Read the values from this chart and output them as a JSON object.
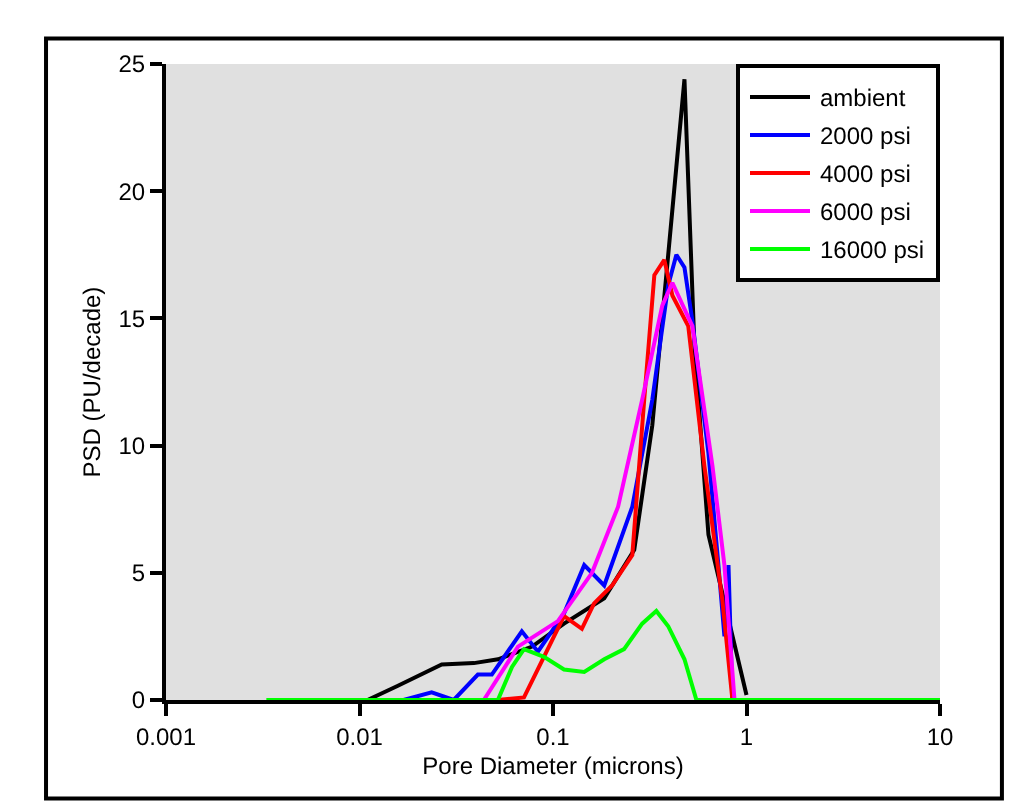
{
  "chart_data": {
    "type": "line",
    "xlabel": "Pore Diameter (microns)",
    "ylabel": "PSD (PU/decade)",
    "log": "x",
    "xlim": [
      0.001,
      10
    ],
    "xticks": [
      {
        "value": 0.001,
        "label": "0.001"
      },
      {
        "value": 0.01,
        "label": "0.01"
      },
      {
        "value": 0.1,
        "label": "0.1"
      },
      {
        "value": 1,
        "label": "1"
      },
      {
        "value": 10,
        "label": "10"
      }
    ],
    "ylim": [
      0,
      25
    ],
    "yticks": [
      0,
      5,
      10,
      15,
      20,
      25
    ],
    "grid": false,
    "legend": "top right",
    "marker": "none",
    "line_style": "solid",
    "series": [
      {
        "name": "ambient",
        "color": "#000000",
        "x": [
          0.011,
          0.0157,
          0.0266,
          0.039,
          0.052,
          0.078,
          0.114,
          0.184,
          0.263,
          0.326,
          0.394,
          0.478,
          0.538,
          0.636,
          1.0
        ],
        "values": [
          0,
          0.55,
          1.4,
          1.45,
          1.6,
          2.1,
          3.0,
          4.0,
          5.9,
          10.8,
          17.5,
          24.4,
          13.9,
          6.5,
          0.2
        ]
      },
      {
        "name": "2000 psi",
        "color": "#0000ff",
        "x": [
          0.0169,
          0.0236,
          0.0307,
          0.0409,
          0.0483,
          0.069,
          0.0836,
          0.114,
          0.145,
          0.184,
          0.257,
          0.326,
          0.394,
          0.434,
          0.478,
          0.525,
          0.636,
          0.716,
          0.769,
          0.807,
          0.846
        ],
        "values": [
          0,
          0.3,
          0,
          1.0,
          1.0,
          2.7,
          1.9,
          3.4,
          5.3,
          4.5,
          7.6,
          11.8,
          16.3,
          17.5,
          17.0,
          14.9,
          9.7,
          5.3,
          2.5,
          5.3,
          0
        ]
      },
      {
        "name": "4000 psi",
        "color": "#ff0000",
        "x": [
          0.0519,
          0.0708,
          0.114,
          0.141,
          0.163,
          0.202,
          0.257,
          0.296,
          0.334,
          0.376,
          0.414,
          0.5,
          0.606,
          0.751,
          0.846
        ],
        "values": [
          0,
          0.1,
          3.3,
          2.8,
          3.8,
          4.5,
          5.7,
          11.8,
          16.7,
          17.3,
          15.9,
          14.7,
          9.2,
          3.9,
          0
        ]
      },
      {
        "name": "6000 psi",
        "color": "#ff00ff",
        "x": [
          0.0439,
          0.0659,
          0.106,
          0.159,
          0.217,
          0.289,
          0.367,
          0.414,
          0.525,
          0.667,
          0.769,
          0.867
        ],
        "values": [
          0,
          2.1,
          3.1,
          5.0,
          7.6,
          11.8,
          15.5,
          16.4,
          14.7,
          9.2,
          5.3,
          0
        ]
      },
      {
        "name": "16000 psi",
        "color": "#00ff00",
        "x": [
          0.0033,
          0.0519,
          0.0614,
          0.0708,
          0.0898,
          0.114,
          0.145,
          0.184,
          0.233,
          0.289,
          0.342,
          0.394,
          0.478,
          0.551,
          10
        ],
        "values": [
          0,
          0,
          1.3,
          2.0,
          1.7,
          1.2,
          1.1,
          1.6,
          2.0,
          3.0,
          3.5,
          2.9,
          1.6,
          0,
          0
        ]
      }
    ]
  }
}
